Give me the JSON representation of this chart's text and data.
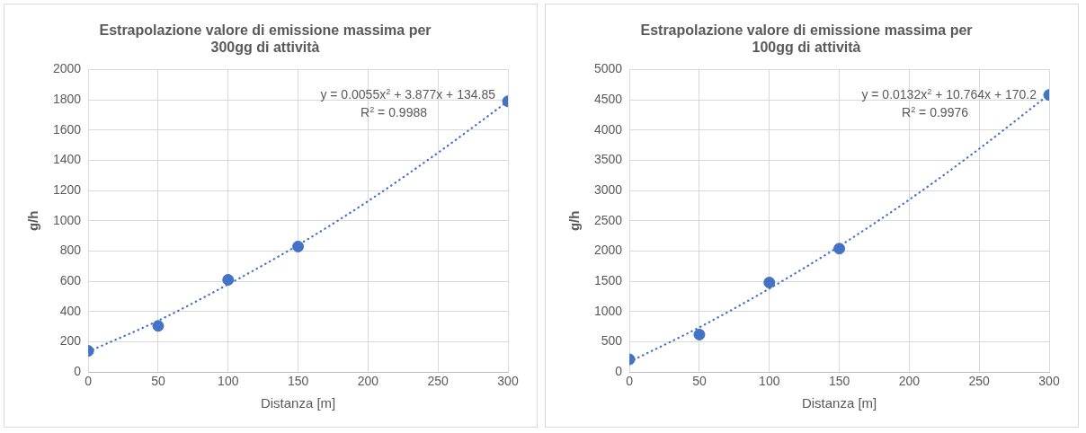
{
  "chart_data": [
    {
      "type": "scatter",
      "title": "Estrapolazione valore di emissione massima per 300gg di attività",
      "xlabel": "Distanza [m]",
      "ylabel": "g/h",
      "xlim": [
        0,
        300
      ],
      "xticks": [
        0,
        50,
        100,
        150,
        200,
        250,
        300
      ],
      "ylim": [
        0,
        2000
      ],
      "yticks": [
        0,
        200,
        400,
        600,
        800,
        1000,
        1200,
        1400,
        1600,
        1800,
        2000
      ],
      "grid": true,
      "marker": "circle",
      "annotations": [
        "y = 0.0055x$^{2}$ + 3.877x + 134.85",
        "R$^{2}$ = 0.9988"
      ],
      "series": [
        {
          "color": "#4472c4",
          "x": [
            0,
            50,
            100,
            150,
            300
          ],
          "values": [
            140,
            305,
            610,
            830,
            1790
          ]
        },
        {
          "type": "line",
          "color": "#4472c4",
          "line_style": "dotted",
          "marker": "none",
          "x": [
            0,
            50,
            100,
            150,
            200,
            250,
            300
          ],
          "values": [
            135,
            340,
            580,
            840,
            1130,
            1450,
            1790
          ]
        }
      ]
    },
    {
      "type": "scatter",
      "title": "Estrapolazione valore di emissione massima per 100gg di attività",
      "xlabel": "Distanza [m]",
      "ylabel": "g/h",
      "xlim": [
        0,
        300
      ],
      "xticks": [
        0,
        50,
        100,
        150,
        200,
        250,
        300
      ],
      "ylim": [
        0,
        5000
      ],
      "yticks": [
        0,
        500,
        1000,
        1500,
        2000,
        2500,
        3000,
        3500,
        4000,
        4500,
        5000
      ],
      "grid": true,
      "marker": "circle",
      "annotations": [
        "y = 0.0132x$^{2}$ + 10.764x + 170.2",
        "R$^{2}$ = 0.9976"
      ],
      "series": [
        {
          "color": "#4472c4",
          "x": [
            0,
            50,
            100,
            150,
            300
          ],
          "values": [
            210,
            620,
            1480,
            2040,
            4580
          ]
        },
        {
          "type": "line",
          "color": "#4472c4",
          "line_style": "dotted",
          "marker": "none",
          "x": [
            0,
            50,
            100,
            150,
            200,
            250,
            300
          ],
          "values": [
            170,
            740,
            1380,
            2080,
            2850,
            3690,
            4590
          ]
        }
      ]
    }
  ]
}
